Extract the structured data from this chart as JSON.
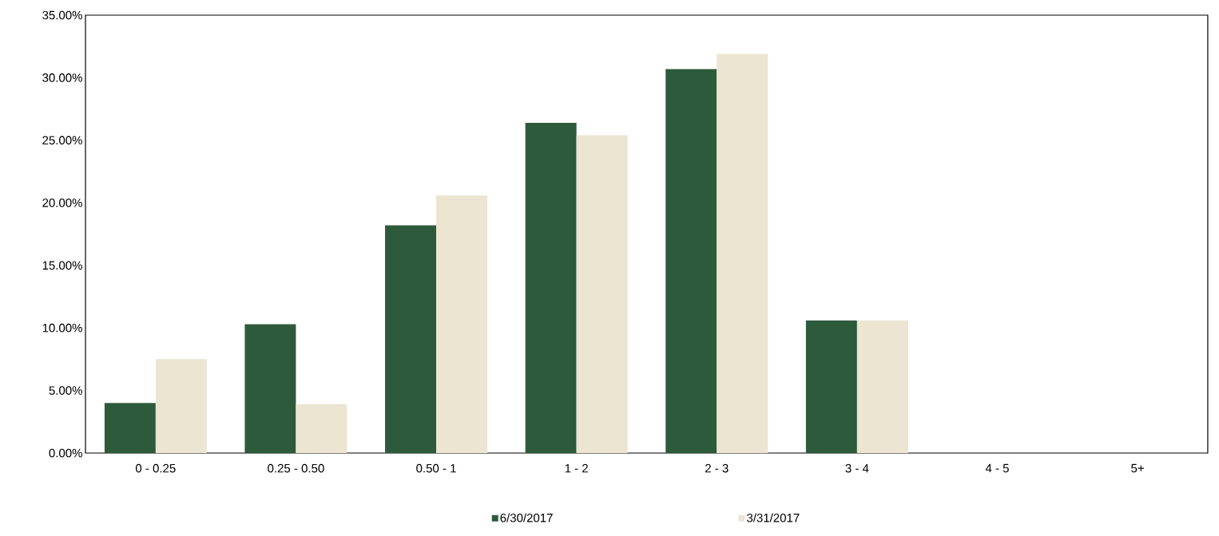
{
  "chart_data": {
    "type": "bar",
    "categories": [
      "0 - 0.25",
      "0.25 - 0.50",
      "0.50 - 1",
      "1 - 2",
      "2 - 3",
      "3 - 4",
      "4 - 5",
      "5+"
    ],
    "series": [
      {
        "name": "6/30/2017",
        "color": "#2e5a3c",
        "values": [
          4.0,
          10.3,
          18.2,
          26.4,
          30.7,
          10.6,
          0,
          0
        ]
      },
      {
        "name": "3/31/2017",
        "color": "#ebe5d2",
        "values": [
          7.5,
          3.9,
          20.6,
          25.4,
          31.9,
          10.6,
          0,
          0
        ]
      }
    ],
    "ylim": [
      0,
      35
    ],
    "yticks": [
      {
        "value": 0,
        "label": "0.00%"
      },
      {
        "value": 5,
        "label": "5.00%"
      },
      {
        "value": 10,
        "label": "10.00%"
      },
      {
        "value": 15,
        "label": "15.00%"
      },
      {
        "value": 20,
        "label": "20.00%"
      },
      {
        "value": 25,
        "label": "25.00%"
      },
      {
        "value": 30,
        "label": "30.00%"
      },
      {
        "value": 35,
        "label": "35.00%"
      }
    ],
    "grid": false,
    "legend": "bottom"
  }
}
